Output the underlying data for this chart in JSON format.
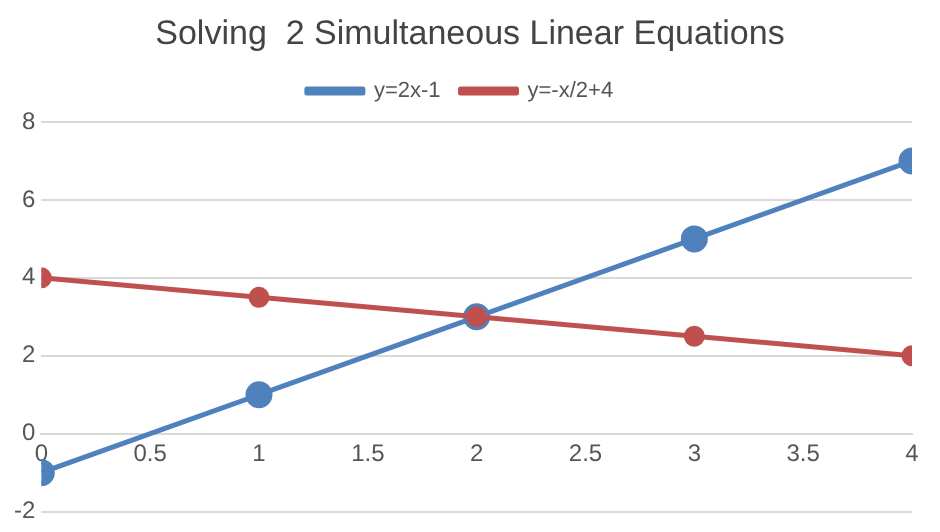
{
  "chart_data": {
    "type": "line",
    "title": "Solving  2 Simultaneous Linear Equations",
    "x": [
      0,
      1,
      2,
      3,
      4
    ],
    "series": [
      {
        "name": "y=2x-1",
        "color": "#4f81bd",
        "values": [
          -1,
          1,
          3,
          5,
          7
        ]
      },
      {
        "name": "y=-x/2+4",
        "color": "#c0504d",
        "values": [
          4,
          3.5,
          3,
          2.5,
          2
        ]
      }
    ],
    "xlim": [
      0,
      4
    ],
    "xticks": [
      0,
      0.5,
      1,
      1.5,
      2,
      2.5,
      3,
      3.5,
      4
    ],
    "ylim": [
      -2,
      8
    ],
    "yticks": [
      -2,
      0,
      2,
      4,
      6,
      8
    ],
    "grid": "y",
    "legend": "top",
    "marker": "circle",
    "line_style": "solid"
  }
}
